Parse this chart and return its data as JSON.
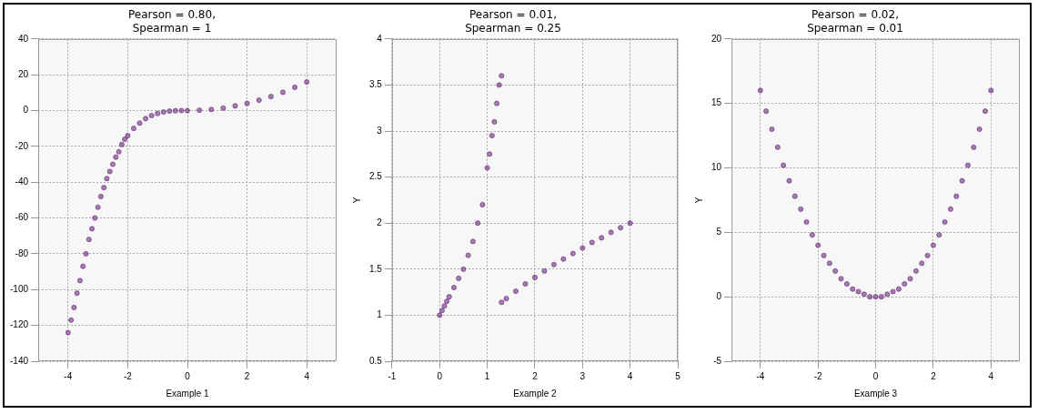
{
  "chart_data": [
    {
      "type": "scatter",
      "title": "Pearson = 0.80,\nSpearman = 1",
      "xlabel": "Example 1",
      "marker": "circle",
      "grid": true,
      "xlim": [
        -5,
        5
      ],
      "xticks": [
        -4,
        -2,
        0,
        2,
        4
      ],
      "ylim": [
        -140,
        40
      ],
      "yticks": [
        -140,
        -120,
        -100,
        -80,
        -60,
        -40,
        -20,
        0,
        20,
        40
      ],
      "series": [
        {
          "color": "#5e1a72",
          "x": [
            -4,
            -3.9,
            -3.8,
            -3.7,
            -3.6,
            -3.5,
            -3.4,
            -3.3,
            -3.2,
            -3.1,
            -3,
            -2.9,
            -2.8,
            -2.7,
            -2.6,
            -2.5,
            -2.4,
            -2.3,
            -2.2,
            -2.1,
            -2,
            -1.8,
            -1.6,
            -1.4,
            -1.2,
            -1,
            -0.8,
            -0.6,
            -0.4,
            -0.2,
            0,
            0.4,
            0.8,
            1.2,
            1.6,
            2,
            2.4,
            2.8,
            3.2,
            3.6,
            4
          ],
          "values": [
            -124,
            -117,
            -110,
            -102,
            -95,
            -87,
            -80,
            -72,
            -66,
            -60,
            -54,
            -48,
            -43,
            -38,
            -34,
            -30,
            -26,
            -23,
            -19,
            -16,
            -14,
            -10,
            -7,
            -4.5,
            -2.8,
            -1.6,
            -0.8,
            -0.3,
            -0.1,
            0,
            0,
            0.2,
            0.6,
            1.4,
            2.6,
            4,
            5.8,
            7.8,
            10.2,
            13,
            16
          ]
        }
      ]
    },
    {
      "type": "scatter",
      "title": "Pearson = 0.01,\nSpearman = 0.25",
      "xlabel": "Example 2",
      "ylabel": "Y",
      "marker": "circle",
      "grid": true,
      "xlim": [
        -1,
        5
      ],
      "xticks": [
        -1,
        0,
        1,
        2,
        3,
        4,
        5
      ],
      "ylim": [
        0.5,
        4
      ],
      "yticks": [
        0.5,
        1,
        1.5,
        2,
        2.5,
        3,
        3.5,
        4
      ],
      "series": [
        {
          "color": "#5e1a72",
          "x": [
            0,
            0.05,
            0.1,
            0.15,
            0.2,
            0.3,
            0.4,
            0.5,
            0.6,
            0.7,
            0.8,
            0.9,
            1,
            1.05,
            1.1,
            1.15,
            1.2,
            1.25,
            1.3,
            1.3,
            1.4,
            1.6,
            1.8,
            2,
            2.2,
            2.4,
            2.6,
            2.8,
            3,
            3.2,
            3.4,
            3.6,
            3.8,
            4
          ],
          "values": [
            1,
            1.05,
            1.1,
            1.15,
            1.2,
            1.3,
            1.4,
            1.5,
            1.65,
            1.8,
            2,
            2.2,
            2.6,
            2.75,
            2.95,
            3.1,
            3.3,
            3.5,
            3.6,
            1.14,
            1.18,
            1.26,
            1.34,
            1.41,
            1.48,
            1.55,
            1.61,
            1.67,
            1.73,
            1.79,
            1.84,
            1.9,
            1.95,
            2
          ]
        }
      ]
    },
    {
      "type": "scatter",
      "title": "Pearson = 0.02,\nSpearman = 0.01",
      "xlabel": "Example 3",
      "ylabel": "Y",
      "marker": "circle",
      "grid": true,
      "xlim": [
        -5,
        5
      ],
      "xticks": [
        -4,
        -2,
        0,
        2,
        4
      ],
      "ylim": [
        -5,
        20
      ],
      "yticks": [
        -5,
        0,
        5,
        10,
        15,
        20
      ],
      "series": [
        {
          "color": "#5e1a72",
          "x": [
            -4,
            -3.8,
            -3.6,
            -3.4,
            -3.2,
            -3,
            -2.8,
            -2.6,
            -2.4,
            -2.2,
            -2,
            -1.8,
            -1.6,
            -1.4,
            -1.2,
            -1,
            -0.8,
            -0.6,
            -0.4,
            -0.2,
            0,
            0.2,
            0.4,
            0.6,
            0.8,
            1,
            1.2,
            1.4,
            1.6,
            1.8,
            2,
            2.2,
            2.4,
            2.6,
            2.8,
            3,
            3.2,
            3.4,
            3.6,
            3.8,
            4
          ],
          "values": [
            16,
            14.4,
            13,
            11.6,
            10.2,
            9,
            7.8,
            6.8,
            5.8,
            4.8,
            4,
            3.2,
            2.6,
            2,
            1.4,
            1,
            0.6,
            0.4,
            0.2,
            0,
            0,
            0,
            0.2,
            0.4,
            0.6,
            1,
            1.4,
            2,
            2.6,
            3.2,
            4,
            4.8,
            5.8,
            6.8,
            7.8,
            9,
            10.2,
            11.6,
            13,
            14.4,
            16
          ]
        }
      ]
    }
  ]
}
